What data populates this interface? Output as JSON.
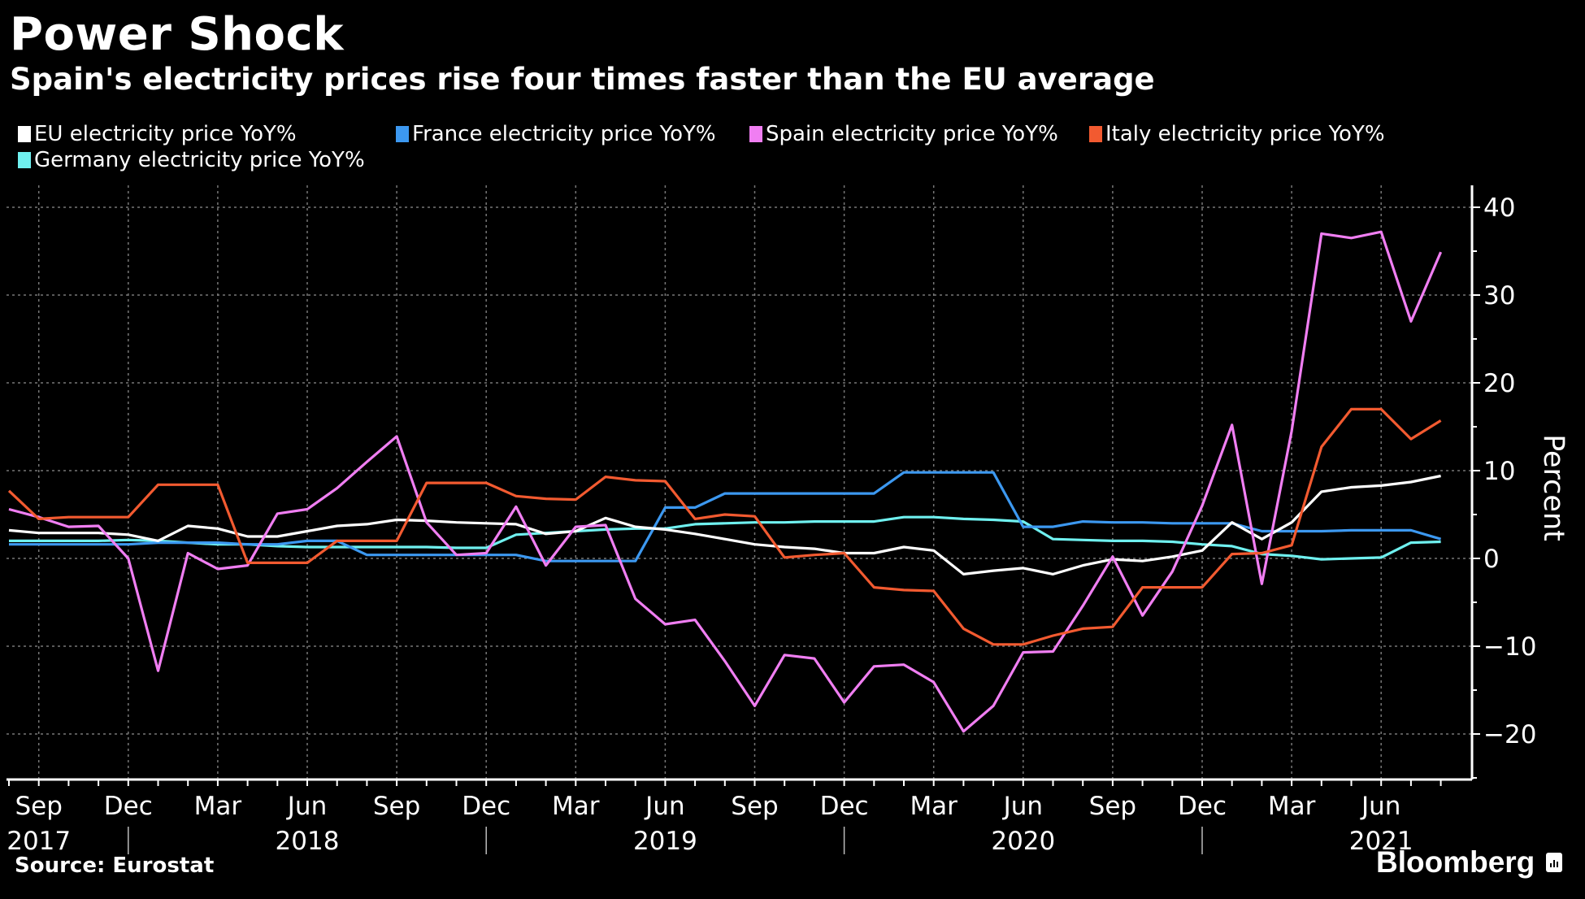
{
  "header": {
    "title": "Power Shock",
    "subtitle": "Spain's electricity prices rise four times faster than the EU average"
  },
  "footer": {
    "source": "Source: Eurostat",
    "brand": "Bloomberg"
  },
  "chart_data": {
    "type": "line",
    "title": "Power Shock",
    "subtitle": "Spain's electricity prices rise four times faster than the EU average",
    "xlabel": "",
    "ylabel": "Percent",
    "ylim": [
      -25,
      42
    ],
    "yticks": [
      40,
      30,
      20,
      10,
      0,
      -10,
      -20
    ],
    "ytick_labels": [
      "40",
      "30",
      "20",
      "10",
      "0",
      "-10",
      "-20"
    ],
    "grid": true,
    "legend_position": "top-left",
    "x": [
      "2017-08",
      "2017-09",
      "2017-10",
      "2017-11",
      "2017-12",
      "2018-01",
      "2018-02",
      "2018-03",
      "2018-04",
      "2018-05",
      "2018-06",
      "2018-07",
      "2018-08",
      "2018-09",
      "2018-10",
      "2018-11",
      "2018-12",
      "2019-01",
      "2019-02",
      "2019-03",
      "2019-04",
      "2019-05",
      "2019-06",
      "2019-07",
      "2019-08",
      "2019-09",
      "2019-10",
      "2019-11",
      "2019-12",
      "2020-01",
      "2020-02",
      "2020-03",
      "2020-04",
      "2020-05",
      "2020-06",
      "2020-07",
      "2020-08",
      "2020-09",
      "2020-10",
      "2020-11",
      "2020-12",
      "2021-01",
      "2021-02",
      "2021-03",
      "2021-04",
      "2021-05",
      "2021-06",
      "2021-07",
      "2021-08"
    ],
    "x_tick_labels": [
      {
        "label": "Sep",
        "month_index": 1
      },
      {
        "label": "Dec",
        "month_index": 4
      },
      {
        "label": "Mar",
        "month_index": 7
      },
      {
        "label": "Jun",
        "month_index": 10
      },
      {
        "label": "Sep",
        "month_index": 13
      },
      {
        "label": "Dec",
        "month_index": 16
      },
      {
        "label": "Mar",
        "month_index": 19
      },
      {
        "label": "Jun",
        "month_index": 22
      },
      {
        "label": "Sep",
        "month_index": 25
      },
      {
        "label": "Dec",
        "month_index": 28
      },
      {
        "label": "Mar",
        "month_index": 31
      },
      {
        "label": "Jun",
        "month_index": 34
      },
      {
        "label": "Sep",
        "month_index": 37
      },
      {
        "label": "Dec",
        "month_index": 40
      },
      {
        "label": "Mar",
        "month_index": 43
      },
      {
        "label": "Jun",
        "month_index": 46
      }
    ],
    "year_labels": [
      {
        "label": "2017",
        "center_month": 1
      },
      {
        "label": "2018",
        "center_month": 10
      },
      {
        "label": "2019",
        "center_month": 22
      },
      {
        "label": "2020",
        "center_month": 34
      },
      {
        "label": "2021",
        "center_month": 46
      }
    ],
    "year_separators_month_index": [
      4,
      16,
      28,
      40
    ],
    "series": [
      {
        "name": "EU electricity price YoY%",
        "color": "#ffffff",
        "values": [
          3.2,
          2.9,
          2.9,
          2.9,
          2.7,
          2.0,
          3.7,
          3.4,
          2.5,
          2.5,
          3.1,
          3.7,
          3.9,
          4.4,
          4.3,
          4.1,
          4.0,
          3.9,
          2.8,
          3.1,
          4.6,
          3.6,
          3.3,
          2.8,
          2.2,
          1.6,
          1.3,
          1.1,
          0.6,
          0.6,
          1.3,
          0.9,
          -1.8,
          -1.4,
          -1.1,
          -1.8,
          -0.8,
          -0.1,
          -0.3,
          0.2,
          0.9,
          4.1,
          2.2,
          4.1,
          7.6,
          8.1,
          8.3,
          8.7,
          9.4
        ]
      },
      {
        "name": "France electricity price YoY%",
        "color": "#3c98f0",
        "values": [
          1.6,
          1.6,
          1.6,
          1.6,
          1.6,
          1.8,
          1.8,
          1.8,
          1.6,
          1.6,
          2.0,
          2.0,
          0.4,
          0.4,
          0.4,
          0.4,
          0.4,
          0.4,
          -0.3,
          -0.3,
          -0.3,
          -0.3,
          5.8,
          5.8,
          7.4,
          7.4,
          7.4,
          7.4,
          7.4,
          7.4,
          9.8,
          9.8,
          9.8,
          9.8,
          3.6,
          3.6,
          4.2,
          4.1,
          4.1,
          4.0,
          4.0,
          4.0,
          3.1,
          3.1,
          3.1,
          3.2,
          3.2,
          3.2,
          2.2
        ]
      },
      {
        "name": "Spain electricity price YoY%",
        "color": "#f07ef2",
        "values": [
          5.6,
          4.7,
          3.6,
          3.7,
          0.0,
          -12.8,
          0.6,
          -1.2,
          -0.8,
          5.1,
          5.6,
          8.0,
          11.0,
          13.9,
          4.1,
          0.4,
          0.6,
          5.9,
          -0.8,
          3.6,
          3.8,
          -4.6,
          -7.5,
          -7.0,
          -11.7,
          -16.8,
          -11.0,
          -11.4,
          -16.4,
          -12.3,
          -12.1,
          -14.1,
          -19.7,
          -16.8,
          -10.7,
          -10.6,
          -5.4,
          0.2,
          -6.5,
          -1.5,
          6.0,
          15.2,
          -2.9,
          14.5,
          37.0,
          36.5,
          37.2,
          27.0,
          34.9
        ]
      },
      {
        "name": "Italy electricity price YoY%",
        "color": "#f25a30",
        "values": [
          7.7,
          4.5,
          4.7,
          4.7,
          4.7,
          8.4,
          8.4,
          8.4,
          -0.5,
          -0.5,
          -0.5,
          2.0,
          2.0,
          2.0,
          8.6,
          8.6,
          8.6,
          7.1,
          6.8,
          6.7,
          9.3,
          8.9,
          8.8,
          4.5,
          5.0,
          4.8,
          0.1,
          0.4,
          0.6,
          -3.3,
          -3.6,
          -3.7,
          -8.0,
          -9.8,
          -9.8,
          -8.8,
          -8.0,
          -7.8,
          -3.3,
          -3.3,
          -3.3,
          0.5,
          0.6,
          1.5,
          12.7,
          17.0,
          17.0,
          13.6,
          15.7
        ]
      },
      {
        "name": "Germany electricity price YoY%",
        "color": "#6ff0ef",
        "values": [
          2.0,
          2.0,
          2.0,
          2.0,
          2.1,
          2.0,
          1.8,
          1.6,
          1.6,
          1.4,
          1.3,
          1.3,
          1.3,
          1.3,
          1.3,
          1.2,
          1.2,
          2.7,
          2.9,
          3.1,
          3.3,
          3.4,
          3.4,
          3.9,
          4.0,
          4.1,
          4.1,
          4.2,
          4.2,
          4.2,
          4.7,
          4.7,
          4.5,
          4.4,
          4.2,
          2.2,
          2.1,
          2.0,
          2.0,
          1.9,
          1.6,
          1.4,
          0.5,
          0.3,
          -0.1,
          0.0,
          0.1,
          1.8,
          1.9
        ]
      }
    ]
  }
}
